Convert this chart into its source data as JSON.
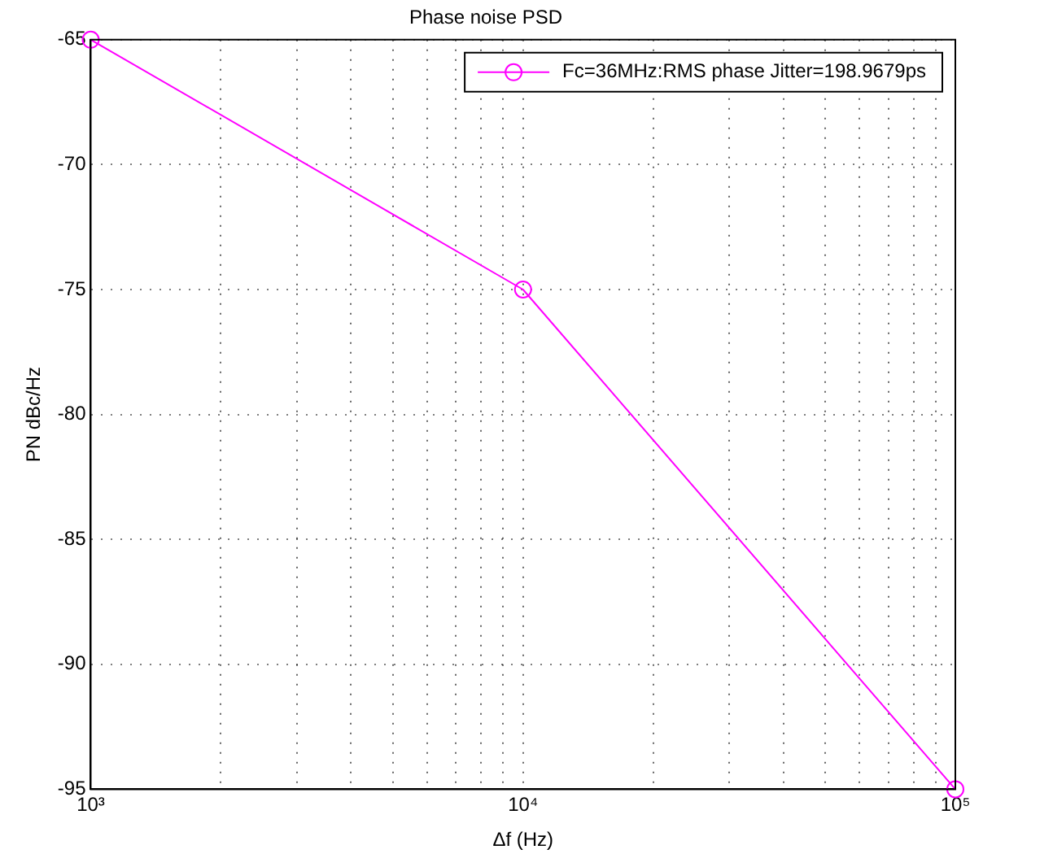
{
  "chart_data": {
    "type": "line",
    "title": "Phase noise PSD",
    "xlabel": "Δf (Hz)",
    "ylabel": "PN dBc/Hz",
    "x": [
      1000,
      10000,
      100000
    ],
    "series": [
      {
        "name": "Fc=36MHz:RMS phase Jitter=198.9679ps",
        "color": "#ff00ff",
        "values": [
          -65,
          -75,
          -95
        ]
      }
    ],
    "log": "x",
    "xlim": [
      1000,
      100000
    ],
    "xticks": [
      {
        "value": 1000,
        "label": "10³"
      },
      {
        "value": 2000,
        "label": null
      },
      {
        "value": 3000,
        "label": null
      },
      {
        "value": 4000,
        "label": null
      },
      {
        "value": 5000,
        "label": null
      },
      {
        "value": 6000,
        "label": null
      },
      {
        "value": 7000,
        "label": null
      },
      {
        "value": 8000,
        "label": null
      },
      {
        "value": 9000,
        "label": null
      },
      {
        "value": 10000,
        "label": "10⁴"
      },
      {
        "value": 20000,
        "label": null
      },
      {
        "value": 30000,
        "label": null
      },
      {
        "value": 40000,
        "label": null
      },
      {
        "value": 50000,
        "label": null
      },
      {
        "value": 60000,
        "label": null
      },
      {
        "value": 70000,
        "label": null
      },
      {
        "value": 80000,
        "label": null
      },
      {
        "value": 90000,
        "label": null
      },
      {
        "value": 100000,
        "label": "10⁵"
      }
    ],
    "ylim": [
      -95,
      -65
    ],
    "yticks": [
      -95,
      -90,
      -85,
      -80,
      -75,
      -70,
      -65
    ],
    "grid": true,
    "legend": "top right",
    "marker": "circle",
    "line_style": "solid"
  }
}
